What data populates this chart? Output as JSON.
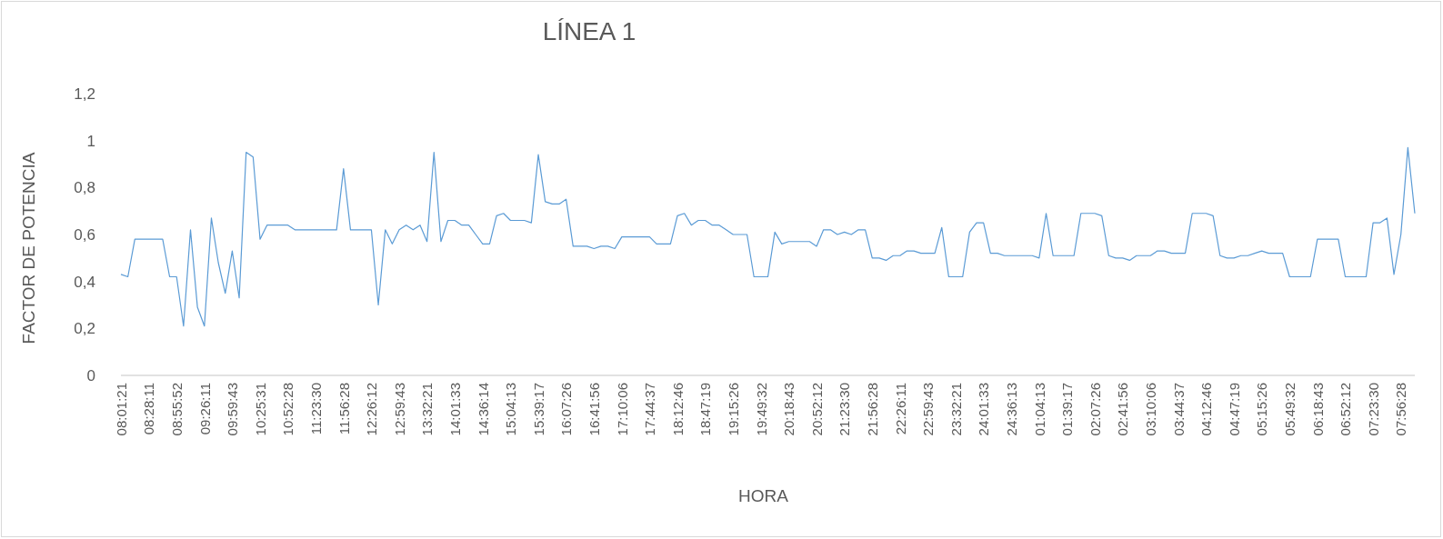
{
  "chart_data": {
    "type": "line",
    "title": "LÍNEA 1",
    "xlabel": "HORA",
    "ylabel": "FACTOR DE POTENCIA",
    "categories": [
      "08:01:21",
      null,
      null,
      null,
      "08:28:11",
      null,
      null,
      null,
      "08:55:52",
      null,
      null,
      null,
      "09:26:11",
      null,
      null,
      null,
      "09:59:43",
      null,
      null,
      null,
      "10:25:31",
      null,
      null,
      null,
      "10:52:28",
      null,
      null,
      null,
      "11:23:30",
      null,
      null,
      null,
      "11:56:28",
      null,
      null,
      null,
      "12:26:12",
      null,
      null,
      null,
      "12:59:43",
      null,
      null,
      null,
      "13:32:21",
      null,
      null,
      null,
      "14:01:33",
      null,
      null,
      null,
      "14:36:14",
      null,
      null,
      null,
      "15:04:13",
      null,
      null,
      null,
      "15:39:17",
      null,
      null,
      null,
      "16:07:26",
      null,
      null,
      null,
      "16:41:56",
      null,
      null,
      null,
      "17:10:06",
      null,
      null,
      null,
      "17:44:37",
      null,
      null,
      null,
      "18:12:46",
      null,
      null,
      null,
      "18:47:19",
      null,
      null,
      null,
      "19:15:26",
      null,
      null,
      null,
      "19:49:32",
      null,
      null,
      null,
      "20:18:43",
      null,
      null,
      null,
      "20:52:12",
      null,
      null,
      null,
      "21:23:30",
      null,
      null,
      null,
      "21:56:28",
      null,
      null,
      null,
      "22:26:11",
      null,
      null,
      null,
      "22:59:43",
      null,
      null,
      null,
      "23:32:21",
      null,
      null,
      null,
      "24:01:33",
      null,
      null,
      null,
      "24:36:13",
      null,
      null,
      null,
      "01:04:13",
      null,
      null,
      null,
      "01:39:17",
      null,
      null,
      null,
      "02:07:26",
      null,
      null,
      null,
      "02:41:56",
      null,
      null,
      null,
      "03:10:06",
      null,
      null,
      null,
      "03:44:37",
      null,
      null,
      null,
      "04:12:46",
      null,
      null,
      null,
      "04:47:19",
      null,
      null,
      null,
      "05:15:26",
      null,
      null,
      null,
      "05:49:32",
      null,
      null,
      null,
      "06:18:43",
      null,
      null,
      null,
      "06:52:12",
      null,
      null,
      null,
      "07:23:30",
      null,
      null,
      null,
      "07:56:28",
      null,
      null
    ],
    "series": [
      {
        "color": "#5b9bd5",
        "values": [
          0.43,
          0.42,
          0.58,
          0.58,
          0.58,
          0.58,
          0.58,
          0.42,
          0.42,
          0.21,
          0.62,
          0.29,
          0.21,
          0.67,
          0.48,
          0.35,
          0.53,
          0.33,
          0.95,
          0.93,
          0.58,
          0.64,
          0.64,
          0.64,
          0.64,
          0.62,
          0.62,
          0.62,
          0.62,
          0.62,
          0.62,
          0.62,
          0.88,
          0.62,
          0.62,
          0.62,
          0.62,
          0.3,
          0.62,
          0.56,
          0.62,
          0.64,
          0.62,
          0.64,
          0.57,
          0.95,
          0.57,
          0.66,
          0.66,
          0.64,
          0.64,
          0.6,
          0.56,
          0.56,
          0.68,
          0.69,
          0.66,
          0.66,
          0.66,
          0.65,
          0.94,
          0.74,
          0.73,
          0.73,
          0.75,
          0.55,
          0.55,
          0.55,
          0.54,
          0.55,
          0.55,
          0.54,
          0.59,
          0.59,
          0.59,
          0.59,
          0.59,
          0.56,
          0.56,
          0.56,
          0.68,
          0.69,
          0.64,
          0.66,
          0.66,
          0.64,
          0.64,
          0.62,
          0.6,
          0.6,
          0.6,
          0.42,
          0.42,
          0.42,
          0.61,
          0.56,
          0.57,
          0.57,
          0.57,
          0.57,
          0.55,
          0.62,
          0.62,
          0.6,
          0.61,
          0.6,
          0.62,
          0.62,
          0.5,
          0.5,
          0.49,
          0.51,
          0.51,
          0.53,
          0.53,
          0.52,
          0.52,
          0.52,
          0.63,
          0.42,
          0.42,
          0.42,
          0.61,
          0.65,
          0.65,
          0.52,
          0.52,
          0.51,
          0.51,
          0.51,
          0.51,
          0.51,
          0.5,
          0.69,
          0.51,
          0.51,
          0.51,
          0.51,
          0.69,
          0.69,
          0.69,
          0.68,
          0.51,
          0.5,
          0.5,
          0.49,
          0.51,
          0.51,
          0.51,
          0.53,
          0.53,
          0.52,
          0.52,
          0.52,
          0.69,
          0.69,
          0.69,
          0.68,
          0.51,
          0.5,
          0.5,
          0.51,
          0.51,
          0.52,
          0.53,
          0.52,
          0.52,
          0.52,
          0.42,
          0.42,
          0.42,
          0.42,
          0.58,
          0.58,
          0.58,
          0.58,
          0.42,
          0.42,
          0.42,
          0.42,
          0.65,
          0.65,
          0.67,
          0.43,
          0.6,
          0.97,
          0.69
        ]
      }
    ],
    "ylim": [
      0,
      1.2
    ],
    "yticks": [
      0,
      {
        "value": 0.2,
        "label": "0,2"
      },
      {
        "value": 0.4,
        "label": "0,4"
      },
      {
        "value": 0.6,
        "label": "0,6"
      },
      {
        "value": 0.8,
        "label": "0,8"
      },
      1,
      {
        "value": 1.2,
        "label": "1,2"
      }
    ],
    "marker": "none",
    "line_style": "solid"
  }
}
